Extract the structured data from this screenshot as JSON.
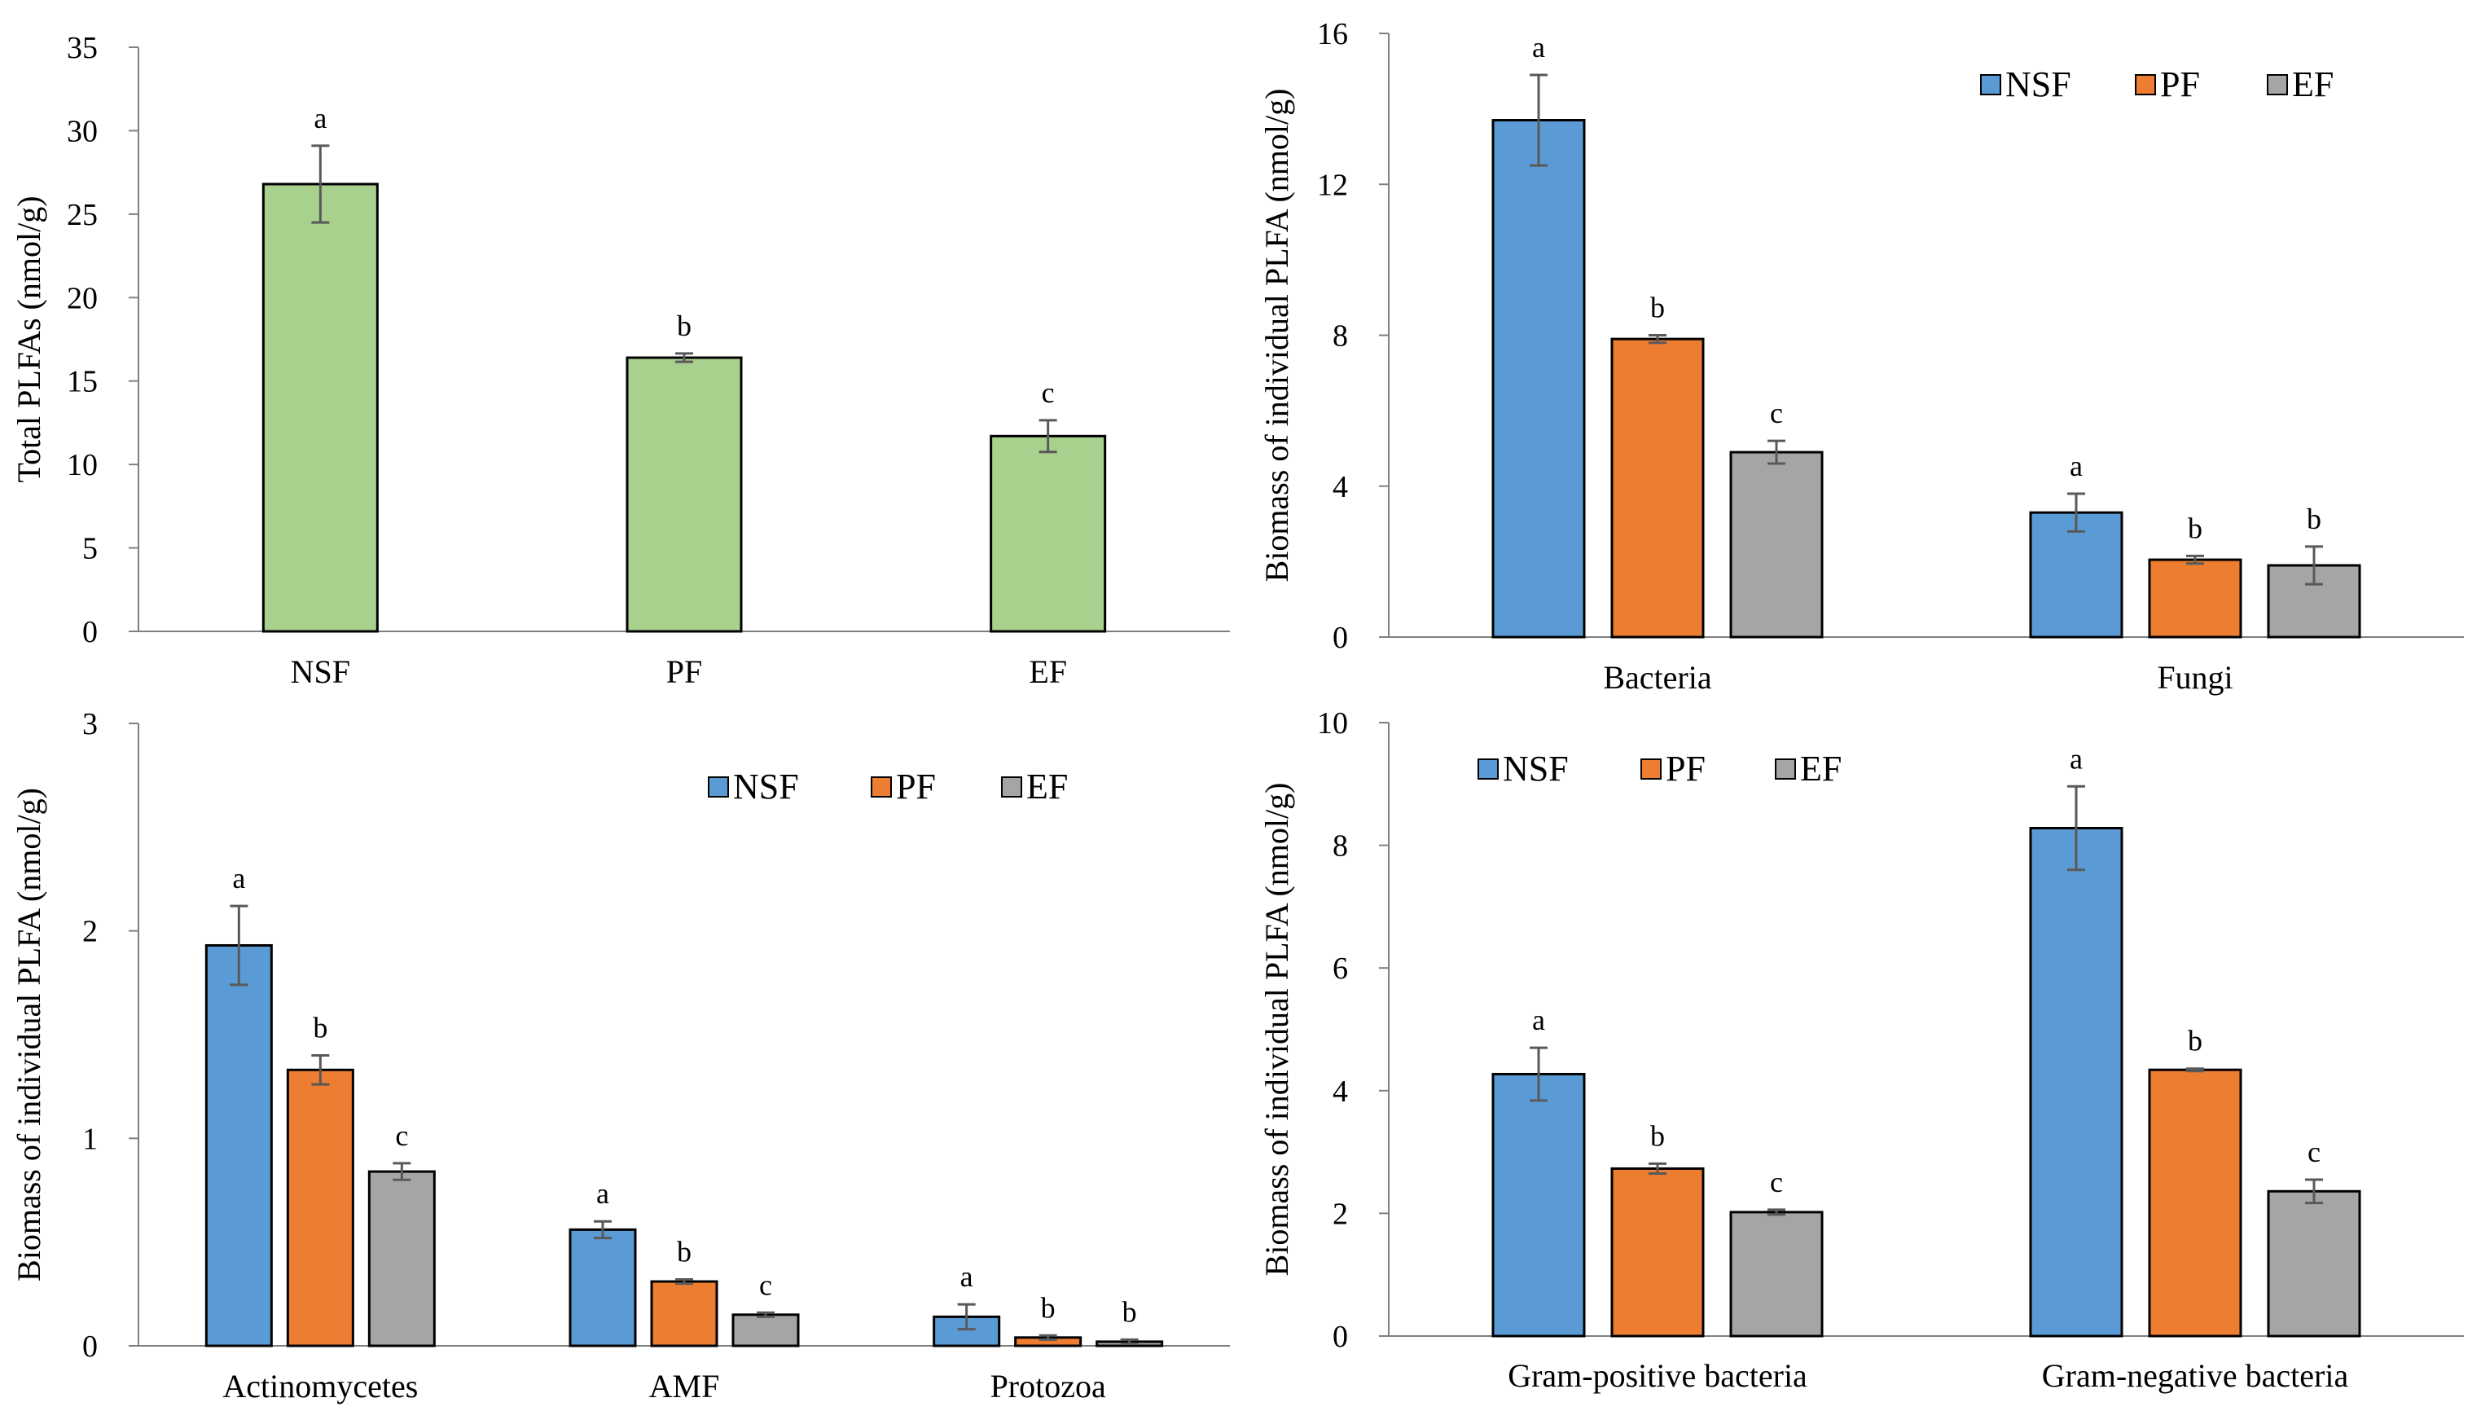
{
  "colors": {
    "NSF": "#5b9bd5",
    "PF": "#ed7d31",
    "EF": "#a5a5a5",
    "total": "#a9d18e",
    "errorbar": "#595959"
  },
  "chart_data": [
    {
      "type": "bar",
      "id": "total",
      "ylabel": "Total  PLFAs (nmol/g)",
      "ylim": [
        0,
        35
      ],
      "yticks": [
        0,
        5,
        10,
        15,
        20,
        25,
        30,
        35
      ],
      "categories": [
        "NSF",
        "PF",
        "EF"
      ],
      "series": [
        {
          "name": "Total PLFAs",
          "color_key": "total",
          "values": [
            26.8,
            16.4,
            11.7
          ],
          "errors": [
            2.3,
            0.25,
            0.95
          ],
          "letters": [
            "a",
            "b",
            "c"
          ]
        }
      ],
      "legend": null
    },
    {
      "type": "bar",
      "id": "bacteria-fungi",
      "ylabel": "Biomass of individual PLFA (nmol/g)",
      "ylim": [
        0,
        16
      ],
      "yticks": [
        0,
        4,
        8,
        12,
        16
      ],
      "categories": [
        "Bacteria",
        "Fungi"
      ],
      "series": [
        {
          "name": "NSF",
          "color_key": "NSF",
          "values": [
            13.7,
            3.3
          ],
          "errors": [
            1.2,
            0.5
          ],
          "letters": [
            "a",
            "a"
          ]
        },
        {
          "name": "PF",
          "color_key": "PF",
          "values": [
            7.9,
            2.05
          ],
          "errors": [
            0.1,
            0.1
          ],
          "letters": [
            "b",
            "b"
          ]
        },
        {
          "name": "EF",
          "color_key": "EF",
          "values": [
            4.9,
            1.9
          ],
          "errors": [
            0.3,
            0.5
          ],
          "letters": [
            "c",
            "b"
          ]
        }
      ],
      "legend": [
        "NSF",
        "PF",
        "EF"
      ],
      "legend_position": "top-right"
    },
    {
      "type": "bar",
      "id": "actino-amf-protozoa",
      "ylabel": "Biomass of individual PLFA (nmol/g)",
      "ylim": [
        0,
        3
      ],
      "yticks": [
        0,
        1,
        2,
        3
      ],
      "categories": [
        "Actinomycetes",
        "AMF",
        "Protozoa"
      ],
      "series": [
        {
          "name": "NSF",
          "color_key": "NSF",
          "values": [
            1.93,
            0.56,
            0.14
          ],
          "errors": [
            0.19,
            0.04,
            0.06
          ],
          "letters": [
            "a",
            "a",
            "a"
          ]
        },
        {
          "name": "PF",
          "color_key": "PF",
          "values": [
            1.33,
            0.31,
            0.04
          ],
          "errors": [
            0.07,
            0.01,
            0.01
          ],
          "letters": [
            "b",
            "b",
            "b"
          ]
        },
        {
          "name": "EF",
          "color_key": "EF",
          "values": [
            0.84,
            0.15,
            0.02
          ],
          "errors": [
            0.04,
            0.01,
            0.01
          ],
          "letters": [
            "c",
            "c",
            "b"
          ]
        }
      ],
      "legend": [
        "NSF",
        "PF",
        "EF"
      ],
      "legend_position": "top-right"
    },
    {
      "type": "bar",
      "id": "gram",
      "ylabel": "Biomass of individual PLFA (nmol/g)",
      "ylim": [
        0,
        10
      ],
      "yticks": [
        0,
        2,
        4,
        6,
        8,
        10
      ],
      "categories": [
        "Gram-positive bacteria",
        "Gram-negative bacteria"
      ],
      "series": [
        {
          "name": "NSF",
          "color_key": "NSF",
          "values": [
            4.27,
            8.28
          ],
          "errors": [
            0.43,
            0.68
          ],
          "letters": [
            "a",
            "a"
          ]
        },
        {
          "name": "PF",
          "color_key": "PF",
          "values": [
            2.73,
            4.34
          ],
          "errors": [
            0.08,
            0.02
          ],
          "letters": [
            "b",
            "b"
          ]
        },
        {
          "name": "EF",
          "color_key": "EF",
          "values": [
            2.02,
            2.36
          ],
          "errors": [
            0.04,
            0.19
          ],
          "letters": [
            "c",
            "c"
          ]
        }
      ],
      "legend": [
        "NSF",
        "PF",
        "EF"
      ],
      "legend_position": "top-left"
    }
  ]
}
